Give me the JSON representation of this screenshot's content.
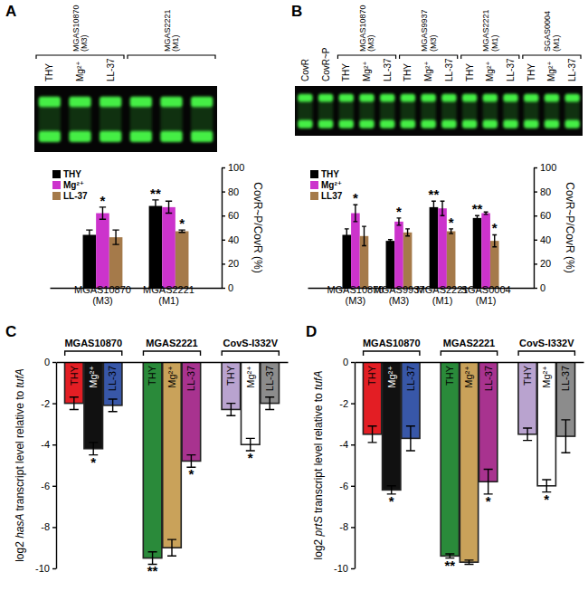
{
  "chart_data": [
    {
      "type": "bar",
      "title": "A",
      "gel": {
        "lanes": [],
        "groups": [
          {
            "label": "MGAS10870 (M3)",
            "lanes": [
              "THY",
              "Mg²⁺",
              "LL-37"
            ]
          },
          {
            "label": "MGAS2221 (M1)",
            "lanes": [
              null,
              null,
              null
            ]
          }
        ]
      },
      "categories": [
        "MGAS10870 (M3)",
        "MGAS2221 (M1)"
      ],
      "series": [
        {
          "name": "THY",
          "color": "#000000",
          "values": [
            44,
            68
          ],
          "errors": [
            4,
            5
          ],
          "significance": [
            null,
            "**"
          ]
        },
        {
          "name": "Mg²⁺",
          "color": "#cc33cc",
          "values": [
            62,
            67
          ],
          "errors": [
            5,
            5
          ],
          "significance": [
            "*",
            null
          ]
        },
        {
          "name": "LL-37",
          "color": "#a57a4a",
          "values": [
            42,
            47
          ],
          "errors": [
            6,
            1
          ],
          "significance": [
            null,
            "*"
          ]
        }
      ],
      "y_label": "CovR~P/CovR (%)",
      "ylim": [
        0,
        100
      ],
      "yticks": [
        0,
        20,
        40,
        60,
        80,
        100
      ],
      "legend": "upper left"
    },
    {
      "type": "bar",
      "title": "B",
      "gel": {
        "lanes": [
          "CovR",
          "CovR~P"
        ],
        "groups": [
          {
            "label": "MGAS10870 (M3)",
            "lanes": [
              "THY",
              "Mg²⁺",
              "LL-37"
            ]
          },
          {
            "label": "MGAS9937 (M3)",
            "lanes": [
              "THY",
              "Mg²⁺",
              "LL-37"
            ]
          },
          {
            "label": "MGAS2221 (M1)",
            "lanes": [
              "THY",
              "Mg²⁺",
              "LL-37"
            ]
          },
          {
            "label": "SGAS0004 (M1)",
            "lanes": [
              "THY",
              "Mg²⁺",
              "LL-37"
            ]
          }
        ]
      },
      "categories": [
        "MGAS10870 (M3)",
        "MGAS9937 (M3)",
        "MGAS2221 (M1)",
        "SGAS0004 (M1)"
      ],
      "series": [
        {
          "name": "THY",
          "color": "#000000",
          "values": [
            44,
            39,
            67,
            58
          ],
          "errors": [
            5,
            1,
            5,
            2
          ],
          "significance": [
            null,
            null,
            "**",
            "**"
          ]
        },
        {
          "name": "Mg²⁺",
          "color": "#cc33cc",
          "values": [
            62,
            55,
            66,
            62
          ],
          "errors": [
            7,
            3,
            6,
            1
          ],
          "significance": [
            "*",
            "*",
            null,
            null
          ]
        },
        {
          "name": "LL37",
          "color": "#a57a4a",
          "values": [
            43,
            46,
            47,
            39
          ],
          "errors": [
            8,
            3,
            2,
            5
          ],
          "significance": [
            null,
            null,
            "*",
            "*"
          ]
        }
      ],
      "y_label": "CovR~P/CovR (%)",
      "ylim": [
        0,
        100
      ],
      "yticks": [
        0,
        20,
        40,
        60,
        80,
        100
      ],
      "legend": "upper left"
    },
    {
      "type": "bar",
      "title": "C",
      "categories": [
        "MGAS10870",
        "MGAS2221",
        "CovS-I332V"
      ],
      "series": [
        {
          "name": "THY",
          "colors": [
            "#e31e24",
            "#2a8a3a",
            "#b9a3cf"
          ],
          "values": [
            -2.0,
            -9.5,
            -2.3
          ],
          "errors": [
            0.3,
            0.3,
            0.3
          ],
          "significance": [
            null,
            "**",
            null
          ]
        },
        {
          "name": "Mg²⁺",
          "colors": [
            "#111111",
            "#c9a25a",
            "#ffffff"
          ],
          "values": [
            -4.2,
            -9.0,
            -4.0
          ],
          "errors": [
            0.3,
            0.4,
            0.3
          ],
          "significance": [
            "*",
            null,
            "*"
          ]
        },
        {
          "name": "LL-37",
          "colors": [
            "#3857a8",
            "#a8338f",
            "#8c8c8c"
          ],
          "values": [
            -2.1,
            -4.8,
            -2.0
          ],
          "errors": [
            0.3,
            0.3,
            0.3
          ],
          "significance": [
            null,
            "*",
            null
          ]
        }
      ],
      "y_label": "log2 hasA transcript level relative to tufA",
      "ylim": [
        -10,
        0
      ],
      "yticks": [
        -10,
        -8,
        -6,
        -4,
        -2,
        0
      ]
    },
    {
      "type": "bar",
      "title": "D",
      "categories": [
        "MGAS10870",
        "MGAS2221",
        "CovS-I332V"
      ],
      "series": [
        {
          "name": "THY",
          "colors": [
            "#e31e24",
            "#2a8a3a",
            "#b9a3cf"
          ],
          "values": [
            -3.5,
            -9.4,
            -3.5
          ],
          "errors": [
            0.4,
            0.1,
            0.3
          ],
          "significance": [
            null,
            "**",
            null
          ]
        },
        {
          "name": "Mg²⁺",
          "colors": [
            "#111111",
            "#c9a25a",
            "#ffffff"
          ],
          "values": [
            -6.2,
            -9.7,
            -6.0
          ],
          "errors": [
            0.2,
            0.1,
            0.3
          ],
          "significance": [
            "*",
            null,
            "*"
          ]
        },
        {
          "name": "LL-37",
          "colors": [
            "#3857a8",
            "#a8338f",
            "#8c8c8c"
          ],
          "values": [
            -3.7,
            -5.8,
            -3.6
          ],
          "errors": [
            0.6,
            0.6,
            0.8
          ],
          "significance": [
            null,
            "*",
            null
          ]
        }
      ],
      "y_label": "log2 prtS transcript level relative to tufA",
      "ylim": [
        -10,
        0
      ],
      "yticks": [
        -10,
        -8,
        -6,
        -4,
        -2,
        0
      ]
    }
  ]
}
